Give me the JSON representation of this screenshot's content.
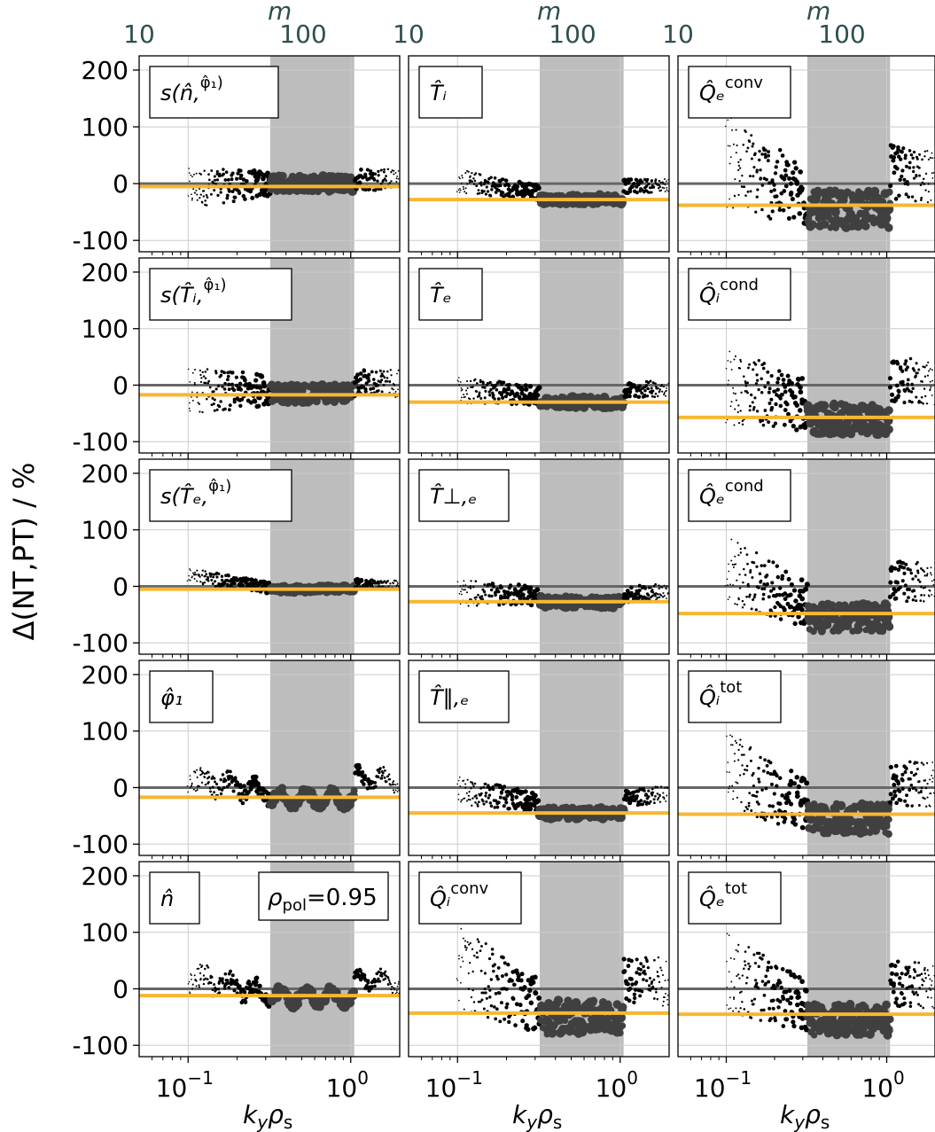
{
  "chart_data": {
    "type": "scatter",
    "ylabel": "Δ(NT,PT) / %",
    "xlabel_var": "k",
    "xlabel_sub1": "y",
    "xlabel_var2": "ρ",
    "xlabel_sub2": "s",
    "top_axis_label": "m",
    "top_ticks": [
      "10",
      "100"
    ],
    "x_scale": "log",
    "xlim": [
      0.05,
      2.0
    ],
    "ylim": [
      -120,
      225
    ],
    "y_ticks": [
      "200",
      "100",
      "0",
      "-100"
    ],
    "y_tick_values": [
      200,
      100,
      0,
      -100
    ],
    "x_tick_labels": [
      "10",
      "10"
    ],
    "x_tick_exps": [
      "−1",
      "0"
    ],
    "x_tick_values": [
      0.1,
      1.0
    ],
    "shaded_region": [
      0.32,
      1.05
    ],
    "annotation": "ρ",
    "annotation_sub": "pol",
    "annotation_val": "=0.95",
    "colors": {
      "orange": "#f7b733",
      "grey_line": "#666666",
      "shade": "#bdbdbd",
      "points": "#000000",
      "points_dense": "#404040"
    },
    "panels": [
      {
        "row": 0,
        "col": 0,
        "label": "s(n̂, φ̂₁)",
        "orange": -5,
        "style": "spread",
        "base": [
          -8,
          0,
          10
        ],
        "jitter": 25
      },
      {
        "row": 0,
        "col": 1,
        "label": "T̂ᵢ",
        "orange": -28,
        "style": "mid",
        "base": [
          5,
          -28,
          -5
        ],
        "jitter": 15
      },
      {
        "row": 0,
        "col": 2,
        "label": "Q̂ₑ conv",
        "orange": -38,
        "style": "wide",
        "base": [
          40,
          -45,
          20
        ],
        "jitter": 60
      },
      {
        "row": 1,
        "col": 0,
        "label": "s(T̂ᵢ, φ̂₁)",
        "orange": -17,
        "style": "spread",
        "base": [
          -10,
          -15,
          5
        ],
        "jitter": 30
      },
      {
        "row": 1,
        "col": 1,
        "label": "T̂ₑ",
        "orange": -30,
        "style": "mid",
        "base": [
          -10,
          -30,
          -10
        ],
        "jitter": 18
      },
      {
        "row": 1,
        "col": 2,
        "label": "Q̂ᵢ cond",
        "orange": -57,
        "style": "wide",
        "base": [
          0,
          -60,
          10
        ],
        "jitter": 50
      },
      {
        "row": 2,
        "col": 0,
        "label": "s(T̂ₑ, φ̂₁)",
        "orange": -5,
        "style": "narrow",
        "base": [
          20,
          -5,
          5
        ],
        "jitter": 10
      },
      {
        "row": 2,
        "col": 1,
        "label": "T̂⊥,ₑ",
        "orange": -27,
        "style": "mid",
        "base": [
          -10,
          -28,
          -15
        ],
        "jitter": 18
      },
      {
        "row": 2,
        "col": 2,
        "label": "Q̂ₑ cond",
        "orange": -48,
        "style": "wide",
        "base": [
          30,
          -55,
          10
        ],
        "jitter": 45
      },
      {
        "row": 3,
        "col": 0,
        "label": "φ̂₁",
        "orange": -17,
        "style": "wave",
        "base": [
          20,
          -20,
          20
        ],
        "jitter": 15
      },
      {
        "row": 3,
        "col": 1,
        "label": "T̂‖,ₑ",
        "orange": -45,
        "style": "mid",
        "base": [
          -5,
          -45,
          -20
        ],
        "jitter": 18
      },
      {
        "row": 3,
        "col": 2,
        "label": "Q̂ᵢ tot",
        "orange": -47,
        "style": "wide",
        "base": [
          30,
          -55,
          10
        ],
        "jitter": 50
      },
      {
        "row": 4,
        "col": 0,
        "label": "n̂",
        "orange": -12,
        "style": "wave",
        "base": [
          20,
          -15,
          20
        ],
        "jitter": 15
      },
      {
        "row": 4,
        "col": 1,
        "label": "Q̂ᵢ conv",
        "orange": -43,
        "style": "wide",
        "base": [
          40,
          -50,
          20
        ],
        "jitter": 55
      },
      {
        "row": 4,
        "col": 2,
        "label": "Q̂ₑ tot",
        "orange": -45,
        "style": "wide",
        "base": [
          30,
          -55,
          10
        ],
        "jitter": 50
      }
    ]
  }
}
